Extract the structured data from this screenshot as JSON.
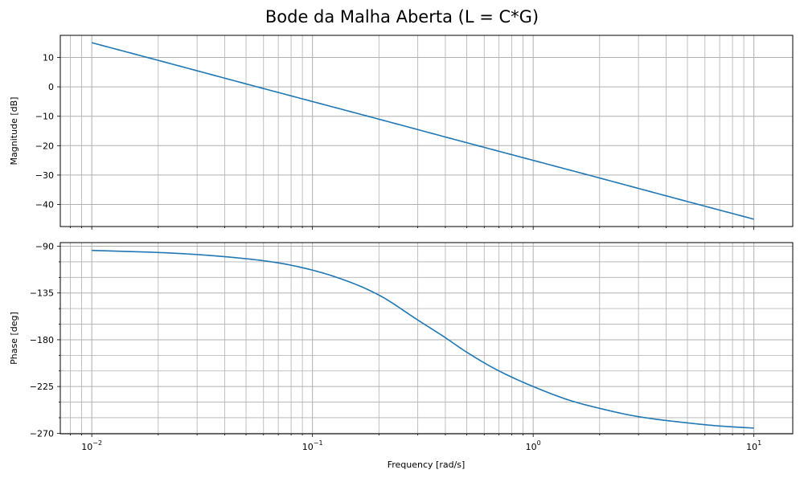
{
  "figure": {
    "title": "Bode da Malha Aberta (L = C*G)",
    "xlabel": "Frequency [rad/s]"
  },
  "chart_data": [
    {
      "type": "line",
      "panel": "magnitude",
      "title": "",
      "xlabel": "",
      "ylabel": "Magnitude [dB]",
      "xscale": "log",
      "xlim": [
        0.0072,
        15.0
      ],
      "ylim": [
        -47.5,
        17.5
      ],
      "grid": true,
      "grid_x": "major-and-minor",
      "y_ticks": [
        10,
        0,
        -10,
        -20,
        -30,
        -40
      ],
      "y_tick_labels": [
        "10",
        "0",
        "−10",
        "−20",
        "−30",
        "−40"
      ],
      "color": "#1f77b4",
      "series": [
        {
          "x": [
            0.01,
            0.02,
            0.05,
            0.1,
            0.2,
            0.5,
            1,
            2,
            5,
            10
          ],
          "y": [
            15,
            9,
            1,
            -5,
            -11,
            -19,
            -25,
            -31,
            -39,
            -45
          ]
        }
      ]
    },
    {
      "type": "line",
      "panel": "phase",
      "title": "",
      "xlabel": "Frequency [rad/s]",
      "ylabel": "Phase [deg]",
      "xscale": "log",
      "xlim": [
        0.0072,
        15.0
      ],
      "ylim": [
        -270.5,
        -86.5
      ],
      "grid": true,
      "grid_x": "major-and-minor",
      "grid_y_minor": true,
      "x_ticks": [
        0.01,
        0.1,
        1,
        10
      ],
      "x_tick_labels": [
        {
          "base": "10",
          "exp": "−2"
        },
        {
          "base": "10",
          "exp": "−1"
        },
        {
          "base": "10",
          "exp": "0"
        },
        {
          "base": "10",
          "exp": "1"
        }
      ],
      "y_ticks": [
        -90,
        -135,
        -180,
        -225,
        -270
      ],
      "y_tick_labels": [
        "−90",
        "−135",
        "−180",
        "−225",
        "−270"
      ],
      "color": "#1f77b4",
      "series": [
        {
          "x": [
            0.01,
            0.02,
            0.03,
            0.05,
            0.07,
            0.1,
            0.15,
            0.2,
            0.3,
            0.4,
            0.5,
            0.7,
            1,
            1.5,
            2,
            3,
            5,
            7,
            10
          ],
          "y": [
            -94,
            -96,
            -98,
            -102,
            -106,
            -113,
            -125,
            -137,
            -161,
            -178,
            -192,
            -210,
            -225,
            -239,
            -246,
            -254,
            -260,
            -263,
            -265
          ]
        }
      ]
    }
  ]
}
